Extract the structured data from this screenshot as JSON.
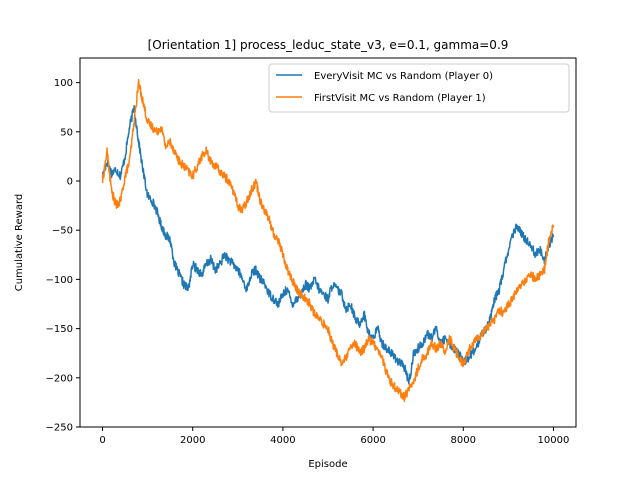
{
  "chart_data": {
    "type": "line",
    "title": "[Orientation 1] process_leduc_state_v3, e=0.1, gamma=0.9",
    "xlabel": "Episode",
    "ylabel": "Cumulative Reward",
    "xlim": [
      -500,
      10500
    ],
    "ylim": [
      -250,
      125
    ],
    "xticks": [
      0,
      2000,
      4000,
      6000,
      8000,
      10000
    ],
    "yticks": [
      -250,
      -200,
      -150,
      -100,
      -50,
      0,
      50,
      100
    ],
    "grid": false,
    "legend": "top-right",
    "series": [
      {
        "name": "EveryVisit MC vs Random (Player 0)",
        "color": "#1f77b4",
        "x": [
          0,
          100,
          200,
          300,
          400,
          500,
          600,
          700,
          800,
          900,
          1000,
          1100,
          1200,
          1300,
          1400,
          1500,
          1600,
          1700,
          1800,
          1900,
          2000,
          2100,
          2200,
          2300,
          2400,
          2500,
          2600,
          2700,
          2800,
          2900,
          3000,
          3100,
          3200,
          3300,
          3400,
          3500,
          3600,
          3700,
          3800,
          3900,
          4000,
          4100,
          4200,
          4300,
          4400,
          4500,
          4600,
          4700,
          4800,
          4900,
          5000,
          5100,
          5200,
          5300,
          5400,
          5500,
          5600,
          5700,
          5800,
          5900,
          6000,
          6100,
          6200,
          6300,
          6400,
          6500,
          6600,
          6700,
          6800,
          6900,
          7000,
          7100,
          7200,
          7300,
          7400,
          7500,
          7600,
          7700,
          7800,
          7900,
          8000,
          8100,
          8200,
          8300,
          8400,
          8500,
          8600,
          8700,
          8800,
          8900,
          9000,
          9100,
          9200,
          9300,
          9400,
          9500,
          9600,
          9700,
          9800,
          9900,
          10000
        ],
        "y": [
          5,
          20,
          8,
          12,
          5,
          25,
          55,
          75,
          40,
          10,
          -15,
          -20,
          -30,
          -45,
          -55,
          -60,
          -85,
          -95,
          -105,
          -110,
          -85,
          -90,
          -95,
          -85,
          -80,
          -90,
          -85,
          -75,
          -80,
          -85,
          -90,
          -100,
          -110,
          -95,
          -90,
          -100,
          -105,
          -115,
          -120,
          -125,
          -115,
          -110,
          -125,
          -120,
          -115,
          -105,
          -110,
          -100,
          -110,
          -115,
          -120,
          -105,
          -110,
          -115,
          -130,
          -125,
          -140,
          -145,
          -135,
          -155,
          -160,
          -150,
          -165,
          -170,
          -175,
          -180,
          -185,
          -190,
          -205,
          -175,
          -170,
          -165,
          -155,
          -160,
          -150,
          -165,
          -160,
          -165,
          -170,
          -175,
          -185,
          -180,
          -175,
          -170,
          -155,
          -150,
          -140,
          -120,
          -110,
          -90,
          -70,
          -55,
          -45,
          -55,
          -60,
          -65,
          -75,
          -70,
          -80,
          -65,
          -55
        ]
      },
      {
        "name": "FirstVisit MC vs Random (Player 1)",
        "color": "#ff7f0e",
        "x": [
          0,
          100,
          200,
          300,
          400,
          500,
          600,
          700,
          800,
          900,
          1000,
          1100,
          1200,
          1300,
          1400,
          1500,
          1600,
          1700,
          1800,
          1900,
          2000,
          2100,
          2200,
          2300,
          2400,
          2500,
          2600,
          2700,
          2800,
          2900,
          3000,
          3100,
          3200,
          3300,
          3400,
          3500,
          3600,
          3700,
          3800,
          3900,
          4000,
          4100,
          4200,
          4300,
          4400,
          4500,
          4600,
          4700,
          4800,
          4900,
          5000,
          5100,
          5200,
          5300,
          5400,
          5500,
          5600,
          5700,
          5800,
          5900,
          6000,
          6100,
          6200,
          6300,
          6400,
          6500,
          6600,
          6700,
          6800,
          6900,
          7000,
          7100,
          7200,
          7300,
          7400,
          7500,
          7600,
          7700,
          7800,
          7900,
          8000,
          8100,
          8200,
          8300,
          8400,
          8500,
          8600,
          8700,
          8800,
          8900,
          9000,
          9100,
          9200,
          9300,
          9400,
          9500,
          9600,
          9700,
          9800,
          9900,
          10000
        ],
        "y": [
          0,
          30,
          -10,
          -25,
          -20,
          5,
          20,
          60,
          100,
          80,
          60,
          55,
          50,
          55,
          35,
          40,
          30,
          20,
          15,
          10,
          5,
          15,
          25,
          30,
          20,
          15,
          10,
          5,
          0,
          -10,
          -25,
          -30,
          -20,
          -10,
          0,
          -20,
          -30,
          -40,
          -55,
          -60,
          -75,
          -90,
          -100,
          -110,
          -115,
          -120,
          -125,
          -135,
          -140,
          -145,
          -150,
          -165,
          -175,
          -185,
          -180,
          -170,
          -165,
          -175,
          -170,
          -160,
          -165,
          -170,
          -180,
          -195,
          -205,
          -210,
          -215,
          -220,
          -210,
          -205,
          -190,
          -180,
          -175,
          -165,
          -170,
          -165,
          -175,
          -160,
          -170,
          -180,
          -185,
          -175,
          -165,
          -160,
          -155,
          -150,
          -145,
          -140,
          -130,
          -135,
          -125,
          -120,
          -110,
          -105,
          -100,
          -95,
          -100,
          -95,
          -90,
          -60,
          -45
        ]
      }
    ]
  }
}
